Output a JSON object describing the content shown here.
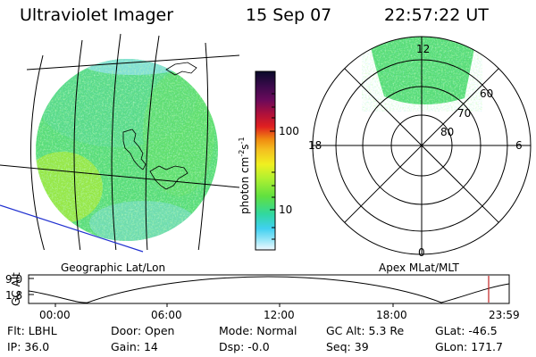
{
  "header": {
    "instrument": "Ultraviolet Imager",
    "date": "15 Sep 07",
    "time": "22:57:22 UT"
  },
  "geo_panel": {
    "caption": "Geographic Lat/Lon"
  },
  "polar_panel": {
    "caption": "Apex MLat/MLT",
    "mlt_labels": {
      "top": "12",
      "left": "18",
      "right": "6",
      "bottom": "0"
    },
    "lat_labels": [
      "60",
      "70",
      "80"
    ]
  },
  "colorbar": {
    "label_main": "photon cm",
    "label_exp1": "-2",
    "label_mid": "s",
    "label_exp2": "-1",
    "ticks": [
      "100",
      "10"
    ],
    "colors": [
      "#0a0a2a",
      "#3a0a4a",
      "#6a0a5a",
      "#b0103a",
      "#e02020",
      "#f08a10",
      "#f4c020",
      "#f0f020",
      "#b0f030",
      "#60e040",
      "#30d8a0",
      "#40d0f0",
      "#a0e8f8",
      "#f0f8ff"
    ]
  },
  "altitude_plot": {
    "ylabel": "GC Alt",
    "yticks": [
      "9.0",
      "1.8"
    ],
    "xticks": [
      "00:00",
      "06:00",
      "12:00",
      "18:00",
      "23:59"
    ]
  },
  "status": {
    "row1": [
      {
        "k": "Flt:",
        "v": "LBHL"
      },
      {
        "k": "Door:",
        "v": "Open"
      },
      {
        "k": "Mode:",
        "v": "Normal"
      },
      {
        "k": "GC Alt:",
        "v": "5.3 Re"
      },
      {
        "k": "GLat:",
        "v": "-46.5"
      }
    ],
    "row2": [
      {
        "k": "IP:",
        "v": "36.0"
      },
      {
        "k": "Gain:",
        "v": "14"
      },
      {
        "k": "Dsp:",
        "v": "-0.0"
      },
      {
        "k": "Seq:",
        "v": "39"
      },
      {
        "k": "GLon:",
        "v": "171.7"
      }
    ]
  }
}
